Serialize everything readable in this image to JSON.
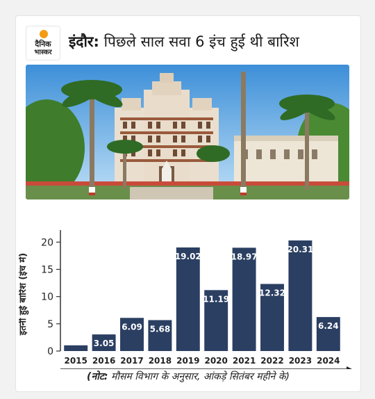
{
  "logo": {
    "line1": "दैनिक",
    "line2": "भास्कर",
    "accent": "#f39c12"
  },
  "title": {
    "city": "इंदौर:",
    "rest": " पिछले साल सवा 6 इंच हुई थी बारिश"
  },
  "note": {
    "label": "(नोट:",
    "text": " मौसम विभाग के अनुसार, आंकड़े सितंबर महीने के)"
  },
  "chart_data": {
    "type": "bar",
    "categories": [
      "2015",
      "2016",
      "2017",
      "2018",
      "2019",
      "2020",
      "2021",
      "2022",
      "2023",
      "2024"
    ],
    "values": [
      1.05,
      3.05,
      6.09,
      5.68,
      19.02,
      11.19,
      18.97,
      12.32,
      20.31,
      6.24
    ],
    "labels": [
      "1.05",
      "3.05",
      "6.09",
      "5.68",
      "19.02",
      "11.19",
      "18.97",
      "12.32",
      "20.31",
      "6.24"
    ],
    "ylabel": "इतनी हुई बारिश (इंच में)",
    "yticks": [
      0,
      5,
      10,
      15,
      20
    ],
    "ylim": [
      0,
      21.7
    ],
    "bar_color": "#2b3f62",
    "grid": false
  }
}
